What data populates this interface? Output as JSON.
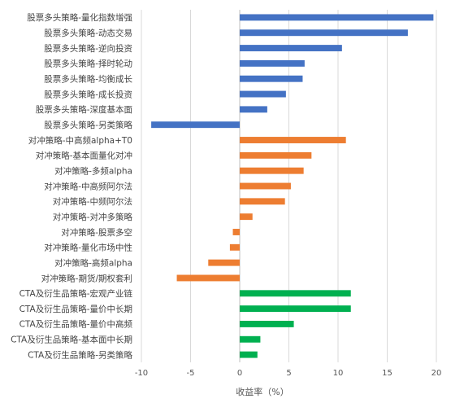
{
  "chart_data": {
    "type": "bar",
    "orientation": "horizontal",
    "xlabel": "收益率（%）",
    "xlim": [
      -10,
      20
    ],
    "xticks": [
      -10,
      -5,
      0,
      5,
      10,
      15,
      20
    ],
    "grid": true,
    "legend": "none",
    "colors": {
      "股票多头策略": "#4472C4",
      "对冲策略": "#ED7D31",
      "CTA及衍生品策略": "#00B050"
    },
    "categories": [
      "股票多头策略-量化指数增强",
      "股票多头策略-动态交易",
      "股票多头策略-逆向投资",
      "股票多头策略-择时轮动",
      "股票多头策略-均衡成长",
      "股票多头策略-成长投资",
      "股票多头策略-深度基本面",
      "股票多头策略-另类策略",
      "对冲策略-中高频alpha+T0",
      "对冲策略-基本面量化对冲",
      "对冲策略-多频alpha",
      "对冲策略-中高频阿尔法",
      "对冲策略-中频阿尔法",
      "对冲策略-对冲多策略",
      "对冲策略-股票多空",
      "对冲策略-量化市场中性",
      "对冲策略-高频alpha",
      "对冲策略-期货/期权套利",
      "CTA及衍生品策略-宏观产业链",
      "CTA及衍生品策略-量价中长期",
      "CTA及衍生品策略-量价中高频",
      "CTA及衍生品策略-基本面中长期",
      "CTA及衍生品策略-另类策略"
    ],
    "groups": [
      "股票多头策略",
      "股票多头策略",
      "股票多头策略",
      "股票多头策略",
      "股票多头策略",
      "股票多头策略",
      "股票多头策略",
      "股票多头策略",
      "对冲策略",
      "对冲策略",
      "对冲策略",
      "对冲策略",
      "对冲策略",
      "对冲策略",
      "对冲策略",
      "对冲策略",
      "对冲策略",
      "对冲策略",
      "CTA及衍生品策略",
      "CTA及衍生品策略",
      "CTA及衍生品策略",
      "CTA及衍生品策略",
      "CTA及衍生品策略"
    ],
    "values": [
      19.7,
      17.1,
      10.4,
      6.6,
      6.4,
      4.7,
      2.8,
      -9.0,
      10.8,
      7.3,
      6.5,
      5.2,
      4.6,
      1.3,
      -0.7,
      -1.0,
      -3.2,
      -6.4,
      11.3,
      11.3,
      5.5,
      2.1,
      1.8
    ]
  }
}
